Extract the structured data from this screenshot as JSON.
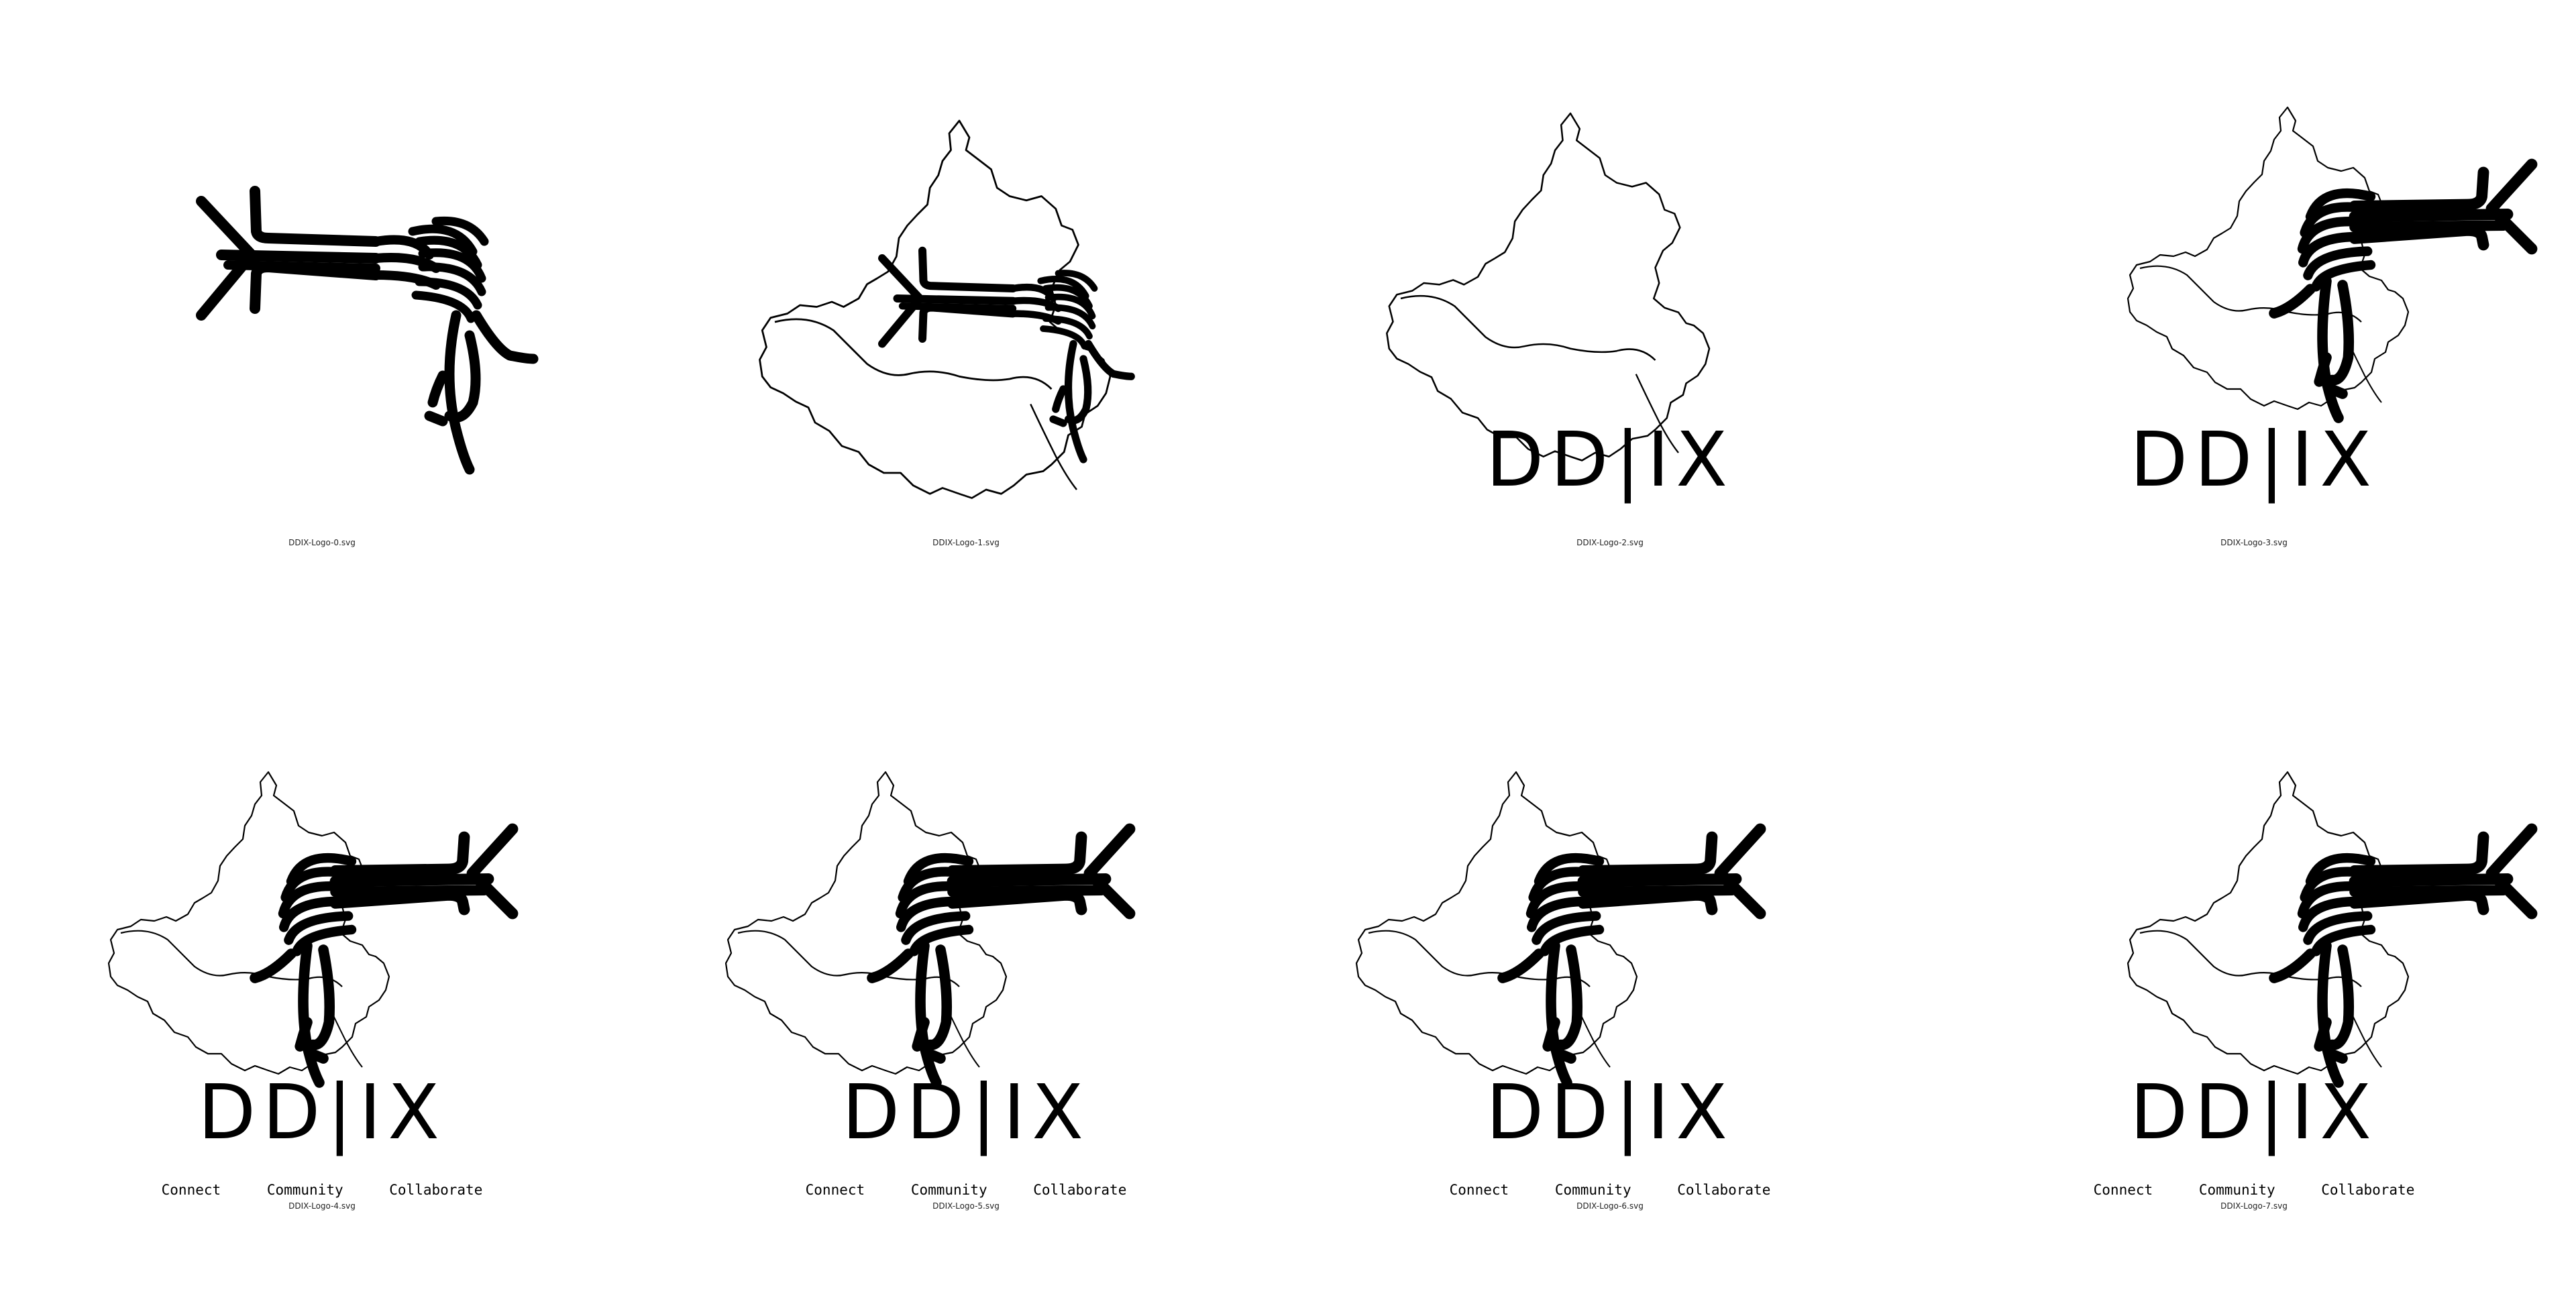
{
  "logos": [
    {
      "file": "DDIX-Logo-0.svg",
      "wordmark": "",
      "tagline": []
    },
    {
      "file": "DDIX-Logo-1.svg",
      "wordmark": "",
      "tagline": []
    },
    {
      "file": "DDIX-Logo-2.svg",
      "wordmark": "DD|IX",
      "tagline": []
    },
    {
      "file": "DDIX-Logo-3.svg",
      "wordmark": "DD|IX",
      "tagline": []
    },
    {
      "file": "DDIX-Logo-4.svg",
      "wordmark": "DD|IX",
      "tagline": [
        "Connect",
        "Community",
        "Collaborate"
      ]
    },
    {
      "file": "DDIX-Logo-5.svg",
      "wordmark": "DD|IX",
      "tagline": [
        "Connect",
        "Community",
        "Collaborate"
      ]
    },
    {
      "file": "DDIX-Logo-6.svg",
      "wordmark": "DD|IX",
      "tagline": [
        "Connect",
        "Community",
        "Collaborate"
      ]
    },
    {
      "file": "DDIX-Logo-7.svg",
      "wordmark": "DD|IX",
      "tagline": [
        "Connect",
        "Community",
        "Collaborate"
      ]
    }
  ],
  "colors": {
    "ink": "#000000",
    "background": "#ffffff"
  }
}
